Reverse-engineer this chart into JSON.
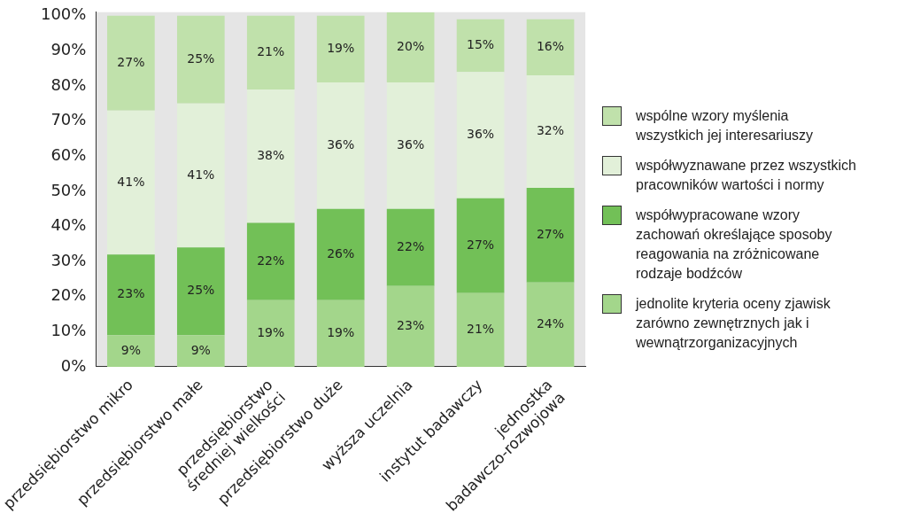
{
  "chart_data": {
    "type": "bar",
    "stacked": true,
    "categories": [
      "przedsiębiorstwo mikro",
      "przedsiębiorstwo małe",
      "przedsiębiorstwo\nśredniej wielkości",
      "przedsiębiorstwo duże",
      "wyższa uczelnia",
      "instytut badawczy",
      "jednostka\nbadawczo-rozwojowa"
    ],
    "series": [
      {
        "name": "jednolite kryteria oceny zjawisk zarówno zewnętrznych jak i wewnątrzorganizacyjnych",
        "color": "#a3d68b",
        "values": [
          9,
          9,
          19,
          19,
          23,
          21,
          24
        ],
        "value_labels": [
          "9%",
          "9%",
          "19%",
          "19%",
          "23%",
          "21%",
          "24%"
        ]
      },
      {
        "name": "współwypracowane wzory zachowań określające sposoby reagowania na zróżnicowane rodzaje bodźców",
        "color": "#72c057",
        "values": [
          23,
          25,
          22,
          26,
          22,
          27,
          27
        ],
        "value_labels": [
          "23%",
          "25%",
          "22%",
          "26%",
          "22%",
          "27%",
          "27%"
        ]
      },
      {
        "name": "współwyznawane przez wszystkich pracowników wartości i normy",
        "color": "#e2f0d9",
        "values": [
          41,
          41,
          38,
          36,
          36,
          36,
          32
        ],
        "value_labels": [
          "41%",
          "41%",
          "38%",
          "36%",
          "36%",
          "36%",
          "32%"
        ]
      },
      {
        "name": "wspólne wzory myślenia wszystkich jej interesariuszy",
        "color": "#c0e1ab",
        "values": [
          27,
          25,
          21,
          19,
          20,
          15,
          16
        ],
        "value_labels": [
          "27%",
          "25%",
          "21%",
          "19%",
          "20%",
          "15%",
          "16%"
        ]
      }
    ],
    "ylim": [
      0,
      101
    ],
    "yticks": [
      {
        "value": 0,
        "label": "0%"
      },
      {
        "value": 10,
        "label": "10%"
      },
      {
        "value": 20,
        "label": "20%"
      },
      {
        "value": 30,
        "label": "30%"
      },
      {
        "value": 40,
        "label": "40%"
      },
      {
        "value": 50,
        "label": "50%"
      },
      {
        "value": 60,
        "label": "60%"
      },
      {
        "value": 70,
        "label": "70%"
      },
      {
        "value": 80,
        "label": "80%"
      },
      {
        "value": 90,
        "label": "90%"
      },
      {
        "value": 100,
        "label": "100%"
      }
    ],
    "grid": false,
    "legend": "right"
  }
}
